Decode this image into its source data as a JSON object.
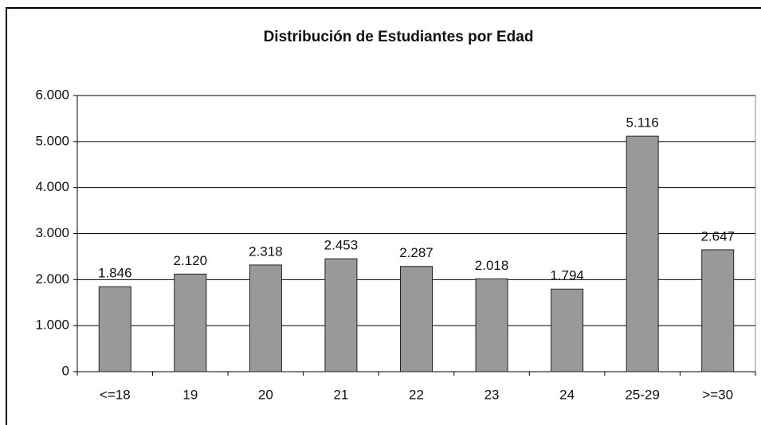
{
  "chart_data": {
    "type": "bar",
    "title": "Distribución de Estudiantes por Edad",
    "categories": [
      "<=18",
      "19",
      "20",
      "21",
      "22",
      "23",
      "24",
      "25-29",
      ">=30"
    ],
    "values": [
      1846,
      2120,
      2318,
      2453,
      2287,
      2018,
      1794,
      5116,
      2647
    ],
    "value_labels": [
      "1.846",
      "2.120",
      "2.318",
      "2.453",
      "2.287",
      "2.018",
      "1.794",
      "5.116",
      "2.647"
    ],
    "color": "#999999",
    "ylim": [
      0,
      6000
    ],
    "yticks": [
      0,
      {
        "value": 1000,
        "label": "1.000"
      },
      {
        "value": 2000,
        "label": "2.000"
      },
      {
        "value": 3000,
        "label": "3.000"
      },
      {
        "value": 4000,
        "label": "4.000"
      },
      {
        "value": 5000,
        "label": "5.000"
      },
      {
        "value": 6000,
        "label": "6.000"
      }
    ],
    "grid": true
  }
}
